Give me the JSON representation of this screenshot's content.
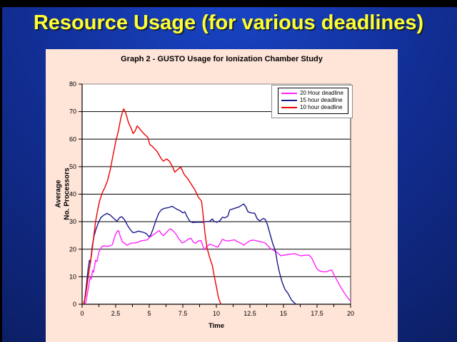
{
  "slide": {
    "title": "Resource Usage (for various deadlines)",
    "colors": {
      "title_text": "#ffff2e",
      "background_center": "#1946c9",
      "background_edge": "#0c1e63",
      "panel_background": "#ffe4d8",
      "plot_background": "#ffffff"
    }
  },
  "chart": {
    "title": "Graph 2 - GUSTO Usage for Ionization Chamber Study",
    "y_axis_title_line1": "Average",
    "y_axis_title_line2": "No. Processors",
    "x_axis_title": "Time"
  },
  "chart_data": {
    "type": "line",
    "title": "Graph 2 - GUSTO Usage for Ionization Chamber Study",
    "xlabel": "Time",
    "ylabel": "Average No. Processors",
    "xlim": [
      0,
      20
    ],
    "ylim": [
      0,
      80
    ],
    "grid": true,
    "legend_position": "top-right",
    "x_major_ticks": [
      0,
      2.5,
      5,
      7.5,
      10,
      12.5,
      15,
      17.5,
      20
    ],
    "x_tick_labels": [
      "0",
      "2.5",
      "5",
      "7.5",
      "10",
      "12.5",
      "15",
      "17.5",
      "20"
    ],
    "x_minor_step": 1.25,
    "y_ticks": [
      0,
      10,
      20,
      30,
      40,
      50,
      60,
      70,
      80
    ],
    "y_tick_labels": [
      "0",
      "10",
      "20",
      "30",
      "40",
      "50",
      "60",
      "70",
      "80"
    ],
    "series": [
      {
        "name": "20 Hour deadline",
        "color": "#ff22ff",
        "points": [
          [
            0.25,
            0
          ],
          [
            0.4,
            4
          ],
          [
            0.5,
            7
          ],
          [
            0.6,
            9.7
          ],
          [
            0.68,
            9.2
          ],
          [
            0.78,
            12.3
          ],
          [
            0.85,
            11.6
          ],
          [
            1.0,
            16
          ],
          [
            1.1,
            15.5
          ],
          [
            1.25,
            19
          ],
          [
            1.45,
            20.9
          ],
          [
            1.65,
            21.3
          ],
          [
            1.85,
            21
          ],
          [
            2.05,
            21.2
          ],
          [
            2.25,
            21.6
          ],
          [
            2.45,
            25
          ],
          [
            2.6,
            26.4
          ],
          [
            2.72,
            26.8
          ],
          [
            2.85,
            24.5
          ],
          [
            3.0,
            22.7
          ],
          [
            3.2,
            22
          ],
          [
            3.35,
            21.4
          ],
          [
            3.55,
            22
          ],
          [
            3.75,
            22.3
          ],
          [
            3.95,
            22.3
          ],
          [
            4.15,
            22.5
          ],
          [
            4.35,
            23
          ],
          [
            4.6,
            23.2
          ],
          [
            4.85,
            23.4
          ],
          [
            5.1,
            24.6
          ],
          [
            5.35,
            25.4
          ],
          [
            5.6,
            26.3
          ],
          [
            5.75,
            26.8
          ],
          [
            5.9,
            25.6
          ],
          [
            6.05,
            24.9
          ],
          [
            6.25,
            25.9
          ],
          [
            6.45,
            27
          ],
          [
            6.6,
            27.4
          ],
          [
            6.8,
            26.6
          ],
          [
            7.0,
            25.4
          ],
          [
            7.2,
            23.8
          ],
          [
            7.45,
            22.3
          ],
          [
            7.65,
            22.7
          ],
          [
            7.9,
            23.6
          ],
          [
            8.1,
            24
          ],
          [
            8.3,
            22.5
          ],
          [
            8.45,
            22.2
          ],
          [
            8.65,
            23
          ],
          [
            8.85,
            23.2
          ],
          [
            9.0,
            21.2
          ],
          [
            9.1,
            19.8
          ],
          [
            9.3,
            21
          ],
          [
            9.5,
            21.8
          ],
          [
            9.7,
            21.5
          ],
          [
            9.95,
            21
          ],
          [
            10.1,
            20.7
          ],
          [
            10.3,
            22.2
          ],
          [
            10.45,
            23.6
          ],
          [
            10.65,
            23.2
          ],
          [
            10.85,
            23
          ],
          [
            11.1,
            23.2
          ],
          [
            11.35,
            23.4
          ],
          [
            11.6,
            22.7
          ],
          [
            11.85,
            22.1
          ],
          [
            12.05,
            21.5
          ],
          [
            12.3,
            22.4
          ],
          [
            12.55,
            23.2
          ],
          [
            12.8,
            23.3
          ],
          [
            13.05,
            23
          ],
          [
            13.3,
            22.7
          ],
          [
            13.6,
            22.4
          ],
          [
            13.8,
            21.4
          ],
          [
            14.0,
            20.4
          ],
          [
            14.25,
            19.6
          ],
          [
            14.45,
            19.1
          ],
          [
            14.65,
            18.3
          ],
          [
            14.8,
            17.6
          ],
          [
            15.05,
            17.9
          ],
          [
            15.3,
            18
          ],
          [
            15.55,
            18.2
          ],
          [
            15.8,
            18.4
          ],
          [
            16.05,
            18
          ],
          [
            16.3,
            17.6
          ],
          [
            16.6,
            17.8
          ],
          [
            16.9,
            17.9
          ],
          [
            17.1,
            16.8
          ],
          [
            17.3,
            14.8
          ],
          [
            17.5,
            12.8
          ],
          [
            17.7,
            12.1
          ],
          [
            17.95,
            11.8
          ],
          [
            18.2,
            11.8
          ],
          [
            18.45,
            12.3
          ],
          [
            18.6,
            12.4
          ],
          [
            18.75,
            10.8
          ],
          [
            18.95,
            9
          ],
          [
            19.15,
            7.2
          ],
          [
            19.35,
            5.5
          ],
          [
            19.55,
            4
          ],
          [
            19.75,
            2.6
          ],
          [
            19.9,
            1.6
          ],
          [
            20.0,
            1.2
          ]
        ]
      },
      {
        "name": "15 hour deadline",
        "color": "#1a1a8c",
        "points": [
          [
            0.15,
            0
          ],
          [
            0.3,
            6
          ],
          [
            0.45,
            13
          ],
          [
            0.55,
            16
          ],
          [
            0.62,
            15
          ],
          [
            0.75,
            21
          ],
          [
            0.9,
            25
          ],
          [
            1.05,
            27.5
          ],
          [
            1.2,
            29.5
          ],
          [
            1.4,
            31.5
          ],
          [
            1.6,
            32.3
          ],
          [
            1.85,
            33
          ],
          [
            2.1,
            32.4
          ],
          [
            2.35,
            31.2
          ],
          [
            2.6,
            30.2
          ],
          [
            2.8,
            31.5
          ],
          [
            2.95,
            31.8
          ],
          [
            3.15,
            30.8
          ],
          [
            3.4,
            28.5
          ],
          [
            3.6,
            27
          ],
          [
            3.8,
            26
          ],
          [
            4.0,
            26.2
          ],
          [
            4.2,
            26.6
          ],
          [
            4.4,
            26.3
          ],
          [
            4.6,
            26.1
          ],
          [
            4.8,
            25.6
          ],
          [
            4.95,
            24.6
          ],
          [
            5.1,
            25
          ],
          [
            5.3,
            27.5
          ],
          [
            5.5,
            30.5
          ],
          [
            5.7,
            33
          ],
          [
            5.9,
            34.3
          ],
          [
            6.1,
            34.8
          ],
          [
            6.3,
            35
          ],
          [
            6.5,
            35.2
          ],
          [
            6.7,
            35.6
          ],
          [
            6.9,
            35
          ],
          [
            7.1,
            34.4
          ],
          [
            7.3,
            34
          ],
          [
            7.5,
            33.2
          ],
          [
            7.65,
            33.6
          ],
          [
            7.85,
            31.5
          ],
          [
            8.05,
            30
          ],
          [
            8.25,
            29.7
          ],
          [
            8.5,
            29.8
          ],
          [
            8.75,
            29.8
          ],
          [
            9.0,
            29.8
          ],
          [
            9.25,
            30
          ],
          [
            9.5,
            30.1
          ],
          [
            9.7,
            31
          ],
          [
            9.85,
            30
          ],
          [
            10.05,
            29.8
          ],
          [
            10.25,
            30.3
          ],
          [
            10.45,
            31.6
          ],
          [
            10.65,
            31.4
          ],
          [
            10.85,
            32
          ],
          [
            11.0,
            34.3
          ],
          [
            11.2,
            34.6
          ],
          [
            11.45,
            35
          ],
          [
            11.7,
            35.4
          ],
          [
            11.95,
            36.2
          ],
          [
            12.05,
            36.4
          ],
          [
            12.2,
            35.3
          ],
          [
            12.35,
            33.6
          ],
          [
            12.6,
            33.2
          ],
          [
            12.85,
            33.1
          ],
          [
            13.05,
            31
          ],
          [
            13.25,
            30.3
          ],
          [
            13.5,
            31.2
          ],
          [
            13.65,
            30.8
          ],
          [
            13.8,
            29
          ],
          [
            14.0,
            25.5
          ],
          [
            14.2,
            22
          ],
          [
            14.4,
            19.4
          ],
          [
            14.55,
            15
          ],
          [
            14.7,
            11.5
          ],
          [
            14.9,
            8
          ],
          [
            15.1,
            5.5
          ],
          [
            15.35,
            3.8
          ],
          [
            15.6,
            1.5
          ],
          [
            15.85,
            0.3
          ],
          [
            15.95,
            0
          ]
        ]
      },
      {
        "name": "10 hour deadline",
        "color": "#ee0000",
        "points": [
          [
            0.1,
            0
          ],
          [
            0.25,
            3
          ],
          [
            0.4,
            8
          ],
          [
            0.55,
            13
          ],
          [
            0.7,
            18
          ],
          [
            0.85,
            24
          ],
          [
            1.0,
            30
          ],
          [
            1.15,
            34
          ],
          [
            1.3,
            37.5
          ],
          [
            1.5,
            40.5
          ],
          [
            1.7,
            42.5
          ],
          [
            1.9,
            45
          ],
          [
            2.1,
            49
          ],
          [
            2.3,
            54
          ],
          [
            2.5,
            59
          ],
          [
            2.7,
            63
          ],
          [
            2.9,
            68
          ],
          [
            3.05,
            70.5
          ],
          [
            3.1,
            71
          ],
          [
            3.25,
            69.5
          ],
          [
            3.45,
            66
          ],
          [
            3.65,
            64
          ],
          [
            3.8,
            62
          ],
          [
            3.95,
            63
          ],
          [
            4.1,
            64.8
          ],
          [
            4.25,
            64
          ],
          [
            4.5,
            62.5
          ],
          [
            4.7,
            61.5
          ],
          [
            4.9,
            60.6
          ],
          [
            5.05,
            58
          ],
          [
            5.2,
            57.5
          ],
          [
            5.4,
            56.5
          ],
          [
            5.6,
            55.4
          ],
          [
            5.85,
            53.2
          ],
          [
            6.05,
            52
          ],
          [
            6.3,
            52.8
          ],
          [
            6.5,
            52
          ],
          [
            6.75,
            49.8
          ],
          [
            6.9,
            48
          ],
          [
            7.2,
            49.3
          ],
          [
            7.35,
            49.8
          ],
          [
            7.6,
            47.2
          ],
          [
            7.9,
            45.4
          ],
          [
            8.1,
            43.8
          ],
          [
            8.4,
            41.6
          ],
          [
            8.65,
            39
          ],
          [
            8.9,
            37.4
          ],
          [
            9.0,
            33
          ],
          [
            9.15,
            26
          ],
          [
            9.3,
            20.6
          ],
          [
            9.5,
            17
          ],
          [
            9.7,
            14
          ],
          [
            9.85,
            10
          ],
          [
            10.0,
            6.4
          ],
          [
            10.15,
            2.5
          ],
          [
            10.3,
            0.5
          ],
          [
            10.35,
            0
          ]
        ]
      }
    ]
  }
}
